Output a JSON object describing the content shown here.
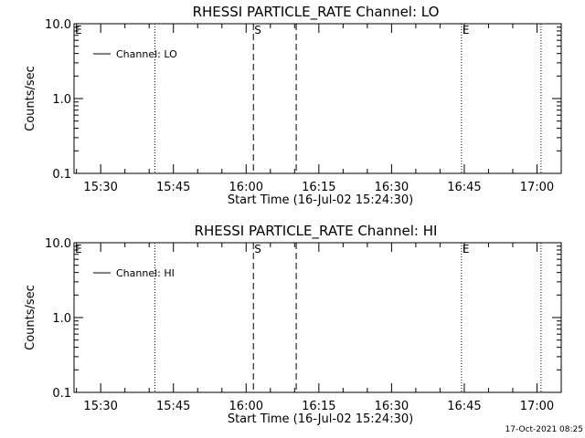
{
  "footer": {
    "timestamp": "17-Oct-2021 08:25"
  },
  "chart_data": [
    {
      "type": "line",
      "title": "RHESSI PARTICLE_RATE Channel: LO",
      "xlabel": "Start Time (16-Jul-02 15:24:30)",
      "ylabel": "Counts/sec",
      "yscale": "log",
      "ylim": [
        0.1,
        10.0
      ],
      "y_ticks": [
        "0.1",
        "1.0",
        "10.0"
      ],
      "x_range": [
        "15:24:30",
        "17:05:00"
      ],
      "x_ticks": [
        "15:30",
        "15:45",
        "16:00",
        "16:15",
        "16:30",
        "16:45",
        "17:00"
      ],
      "series": [
        {
          "name": "Channel: LO",
          "values": []
        }
      ],
      "legend_position": "top-left",
      "dotted_lines": [
        "15:41:10",
        "16:44:25",
        "17:00:50"
      ],
      "dashed_lines": [
        "16:01:30",
        "16:10:20"
      ],
      "markers": [
        {
          "label": "E",
          "time": "15:24:30"
        },
        {
          "label": "S",
          "time": "16:01:30"
        },
        {
          "label": "E",
          "time": "16:44:25"
        }
      ]
    },
    {
      "type": "line",
      "title": "RHESSI PARTICLE_RATE Channel: HI",
      "xlabel": "Start Time (16-Jul-02 15:24:30)",
      "ylabel": "Counts/sec",
      "yscale": "log",
      "ylim": [
        0.1,
        10.0
      ],
      "y_ticks": [
        "0.1",
        "1.0",
        "10.0"
      ],
      "x_range": [
        "15:24:30",
        "17:05:00"
      ],
      "x_ticks": [
        "15:30",
        "15:45",
        "16:00",
        "16:15",
        "16:30",
        "16:45",
        "17:00"
      ],
      "series": [
        {
          "name": "Channel: HI",
          "values": []
        }
      ],
      "legend_position": "top-left",
      "dotted_lines": [
        "15:41:10",
        "16:44:25",
        "17:00:50"
      ],
      "dashed_lines": [
        "16:01:30",
        "16:10:20"
      ],
      "markers": [
        {
          "label": "E",
          "time": "15:24:30"
        },
        {
          "label": "S",
          "time": "16:01:30"
        },
        {
          "label": "E",
          "time": "16:44:25"
        }
      ]
    }
  ]
}
